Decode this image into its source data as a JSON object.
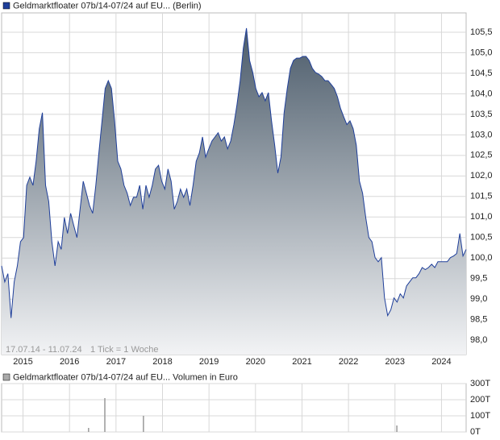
{
  "chart_data": [
    {
      "type": "area-line",
      "title": "Geldmarktfloater 07b/14-07/24 auf EU... (Berlin)",
      "period": "17.07.14 - 11.07.24",
      "tick_note": "1 Tick = 1 Woche",
      "color": "#1f3f9a",
      "values": [
        99.81,
        99.42,
        99.62,
        98.54,
        99.42,
        99.81,
        100.4,
        100.5,
        101.77,
        101.97,
        101.77,
        102.36,
        103.15,
        103.54,
        101.77,
        101.38,
        100.4,
        99.81,
        100.4,
        100.21,
        100.99,
        100.6,
        101.09,
        100.79,
        100.5,
        101.19,
        101.87,
        101.58,
        101.28,
        101.09,
        101.77,
        102.56,
        103.34,
        104.13,
        104.32,
        104.13,
        103.34,
        102.36,
        102.17,
        101.77,
        101.58,
        101.28,
        101.48,
        101.48,
        101.77,
        101.19,
        101.77,
        101.48,
        101.77,
        102.17,
        102.26,
        101.87,
        101.68,
        102.17,
        101.87,
        101.19,
        101.38,
        101.68,
        101.48,
        101.68,
        101.28,
        101.77,
        102.36,
        102.56,
        102.95,
        102.46,
        102.66,
        102.85,
        102.95,
        103.05,
        102.85,
        102.95,
        102.66,
        102.85,
        103.25,
        103.74,
        104.32,
        105.11,
        105.6,
        104.81,
        104.52,
        104.13,
        103.93,
        104.03,
        103.83,
        104.03,
        103.34,
        102.75,
        102.07,
        102.46,
        103.54,
        104.13,
        104.62,
        104.81,
        104.87,
        104.87,
        104.91,
        104.91,
        104.81,
        104.62,
        104.52,
        104.48,
        104.42,
        104.32,
        104.32,
        104.23,
        104.13,
        103.93,
        103.64,
        103.44,
        103.25,
        103.34,
        103.15,
        102.75,
        101.87,
        101.58,
        100.99,
        100.5,
        100.4,
        100.01,
        99.91,
        100.01,
        99.03,
        98.6,
        98.74,
        99.03,
        98.93,
        99.13,
        99.03,
        99.32,
        99.42,
        99.52,
        99.52,
        99.62,
        99.77,
        99.72,
        99.77,
        99.85,
        99.77,
        99.91,
        99.91,
        99.91,
        99.91,
        100.01,
        100.05,
        100.11,
        100.6,
        100.05,
        100.21
      ],
      "xlim": [
        2014.54,
        2024.53
      ],
      "xticks": [
        2015,
        2016,
        2017,
        2018,
        2019,
        2020,
        2021,
        2022,
        2023,
        2024
      ],
      "ylim": [
        97.65,
        105.97
      ],
      "yticks": [
        {
          "value": 98.0,
          "label": "98,0"
        },
        {
          "value": 98.5,
          "label": "98,5"
        },
        {
          "value": 99.0,
          "label": "99,0"
        },
        {
          "value": 99.5,
          "label": "99,5"
        },
        {
          "value": 100.0,
          "label": "100,0"
        },
        {
          "value": 100.5,
          "label": "100,5"
        },
        {
          "value": 101.0,
          "label": "101,0"
        },
        {
          "value": 101.5,
          "label": "101,5"
        },
        {
          "value": 102.0,
          "label": "102,0"
        },
        {
          "value": 102.5,
          "label": "102,5"
        },
        {
          "value": 103.0,
          "label": "103,0"
        },
        {
          "value": 103.5,
          "label": "103,5"
        },
        {
          "value": 104.0,
          "label": "104,0"
        },
        {
          "value": 104.5,
          "label": "104,5"
        },
        {
          "value": 105.0,
          "label": "105,0"
        },
        {
          "value": 105.5,
          "label": "105,5"
        }
      ],
      "grid": true
    },
    {
      "type": "bar",
      "title": "Geldmarktfloater 07b/14-07/24 auf EU... Volumen in Euro",
      "color": "#999999",
      "x": [
        2016.41,
        2016.76,
        2017.59,
        2023.04
      ],
      "values": [
        25,
        210,
        100,
        40
      ],
      "xlim": [
        2014.54,
        2024.53
      ],
      "xticks": [
        2015,
        2016,
        2017,
        2018,
        2019,
        2020,
        2021,
        2022,
        2023,
        2024
      ],
      "ylim": [
        0,
        300
      ],
      "yticks": [
        {
          "value": 0,
          "label": "0T"
        },
        {
          "value": 100,
          "label": "100T"
        },
        {
          "value": 200,
          "label": "200T"
        },
        {
          "value": 300,
          "label": "300T"
        }
      ],
      "grid": true
    }
  ]
}
